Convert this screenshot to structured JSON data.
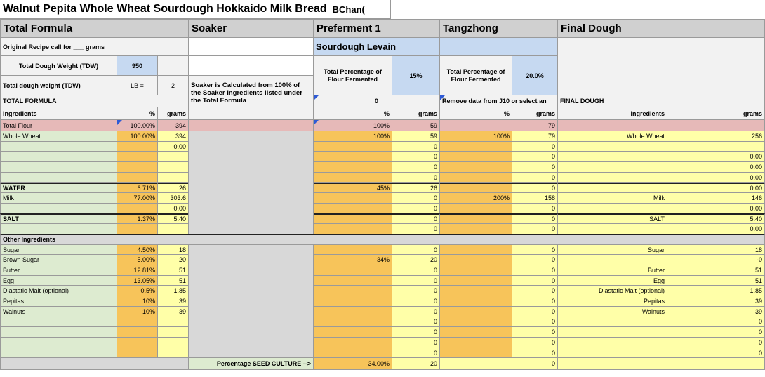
{
  "title": {
    "main": "Walnut Pepita Whole Wheat Sourdough Hokkaido Milk Bread",
    "author": "BChan("
  },
  "sections": [
    "Total Formula",
    "Soaker",
    "Preferment 1",
    "Tangzhong",
    "Final Dough"
  ],
  "orig_recipe": "Original Recipe call for ___ grams",
  "tdw_label": "Total Dough Weight (TDW)",
  "tdw_value": "950",
  "tdw2_label": "Total dough weight (TDW)",
  "lb_label": "LB =",
  "lb_value": "2",
  "total_formula": "TOTAL FORMULA",
  "soaker_note": "Soaker is Calculated from 100% of the Soaker Ingredients listed under the Total Formula",
  "levain_label": "Sourdough Levain",
  "pf_label": "Total Percentage of Flour Fermented",
  "pf_pct": "15%",
  "pf_zero": "0",
  "tz_label": "Total Percentage of Flour Fermented",
  "tz_pct": "20.0%",
  "tz_note": "Remove data from J10 or select an",
  "final_dough": "FINAL DOUGH",
  "col_headers": {
    "ingredients": "Ingredients",
    "pct": "%",
    "grams": "grams"
  },
  "total_flour": {
    "name": "Total Flour",
    "pct": "100.00%",
    "grams": "394",
    "pf_pct": "100%",
    "pf_grams": "59",
    "tz_grams": "79"
  },
  "flour_rows": [
    {
      "name": "Whole Wheat",
      "pct": "100.00%",
      "grams": "394",
      "pf_pct": "100%",
      "pf_g": "59",
      "tz_pct": "100%",
      "tz_g": "79",
      "fd_name": "Whole Wheat",
      "fd_g": "256"
    },
    {
      "name": "",
      "pct": "",
      "grams": "0.00",
      "pf_pct": "",
      "pf_g": "0",
      "tz_pct": "",
      "tz_g": "0",
      "fd_name": "",
      "fd_g": ""
    },
    {
      "name": "",
      "pct": "",
      "grams": "",
      "pf_pct": "",
      "pf_g": "0",
      "tz_pct": "",
      "tz_g": "0",
      "fd_name": "",
      "fd_g": "0.00"
    },
    {
      "name": "",
      "pct": "",
      "grams": "",
      "pf_pct": "",
      "pf_g": "0",
      "tz_pct": "",
      "tz_g": "0",
      "fd_name": "",
      "fd_g": "0.00"
    },
    {
      "name": "",
      "pct": "",
      "grams": "",
      "pf_pct": "",
      "pf_g": "0",
      "tz_pct": "",
      "tz_g": "0",
      "fd_name": "",
      "fd_g": "0.00"
    }
  ],
  "water_rows": [
    {
      "name": "WATER",
      "pct": "6.71%",
      "grams": "26",
      "pf_pct": "45%",
      "pf_g": "26",
      "tz_pct": "",
      "tz_g": "0",
      "fd_name": "",
      "fd_g": "0.00"
    },
    {
      "name": "Milk",
      "pct": "77.00%",
      "grams": "303.6",
      "pf_pct": "",
      "pf_g": "0",
      "tz_pct": "200%",
      "tz_g": "158",
      "fd_name": "Milk",
      "fd_g": "146"
    },
    {
      "name": "",
      "pct": "",
      "grams": "0.00",
      "pf_pct": "",
      "pf_g": "0",
      "tz_pct": "",
      "tz_g": "0",
      "fd_name": "",
      "fd_g": "0.00"
    }
  ],
  "salt_rows": [
    {
      "name": "SALT",
      "pct": "1.37%",
      "grams": "5.40",
      "pf_pct": "",
      "pf_g": "0",
      "tz_pct": "",
      "tz_g": "0",
      "fd_name": "SALT",
      "fd_g": "5.40"
    },
    {
      "name": "",
      "pct": "",
      "grams": "",
      "pf_pct": "",
      "pf_g": "0",
      "tz_pct": "",
      "tz_g": "0",
      "fd_name": "",
      "fd_g": "0.00"
    }
  ],
  "other_label": "Other Ingredients",
  "other_rows": [
    {
      "name": "Sugar",
      "pct": "4.50%",
      "grams": "18",
      "pf_pct": "",
      "pf_g": "0",
      "tz_pct": "",
      "tz_g": "0",
      "fd_name": "Sugar",
      "fd_g": "18"
    },
    {
      "name": "Brown Sugar",
      "pct": "5.00%",
      "grams": "20",
      "pf_pct": "34%",
      "pf_g": "20",
      "tz_pct": "",
      "tz_g": "0",
      "fd_name": "",
      "fd_g": "-0"
    },
    {
      "name": "Butter",
      "pct": "12.81%",
      "grams": "51",
      "pf_pct": "",
      "pf_g": "0",
      "tz_pct": "",
      "tz_g": "0",
      "fd_name": "Butter",
      "fd_g": "51"
    },
    {
      "name": "Egg",
      "pct": "13.05%",
      "grams": "51",
      "pf_pct": "",
      "pf_g": "0",
      "tz_pct": "",
      "tz_g": "0",
      "fd_name": "Egg",
      "fd_g": "51"
    },
    {
      "name": "Diastatic Malt (optional)",
      "pct": "0.5%",
      "grams": "1.85",
      "pf_pct": "",
      "pf_g": "0",
      "tz_pct": "",
      "tz_g": "0",
      "fd_name": "Diastatic Malt (optional)",
      "fd_g": "1.85"
    },
    {
      "name": "Pepitas",
      "pct": "10%",
      "grams": "39",
      "pf_pct": "",
      "pf_g": "0",
      "tz_pct": "",
      "tz_g": "0",
      "fd_name": "Pepitas",
      "fd_g": "39"
    },
    {
      "name": "Walnuts",
      "pct": "10%",
      "grams": "39",
      "pf_pct": "",
      "pf_g": "0",
      "tz_pct": "",
      "tz_g": "0",
      "fd_name": "Walnuts",
      "fd_g": "39"
    },
    {
      "name": "",
      "pct": "",
      "grams": "",
      "pf_pct": "",
      "pf_g": "0",
      "tz_pct": "",
      "tz_g": "0",
      "fd_name": "",
      "fd_g": "0"
    },
    {
      "name": "",
      "pct": "",
      "grams": "",
      "pf_pct": "",
      "pf_g": "0",
      "tz_pct": "",
      "tz_g": "0",
      "fd_name": "",
      "fd_g": "0"
    },
    {
      "name": "",
      "pct": "",
      "grams": "",
      "pf_pct": "",
      "pf_g": "0",
      "tz_pct": "",
      "tz_g": "0",
      "fd_name": "",
      "fd_g": "0"
    },
    {
      "name": "",
      "pct": "",
      "grams": "",
      "pf_pct": "",
      "pf_g": "0",
      "tz_pct": "",
      "tz_g": "0",
      "fd_name": "",
      "fd_g": "0"
    }
  ],
  "seed": {
    "label": "Percentage SEED CULTURE  -->",
    "pct": "34.00%",
    "grams": "20",
    "tz_g": "0"
  }
}
